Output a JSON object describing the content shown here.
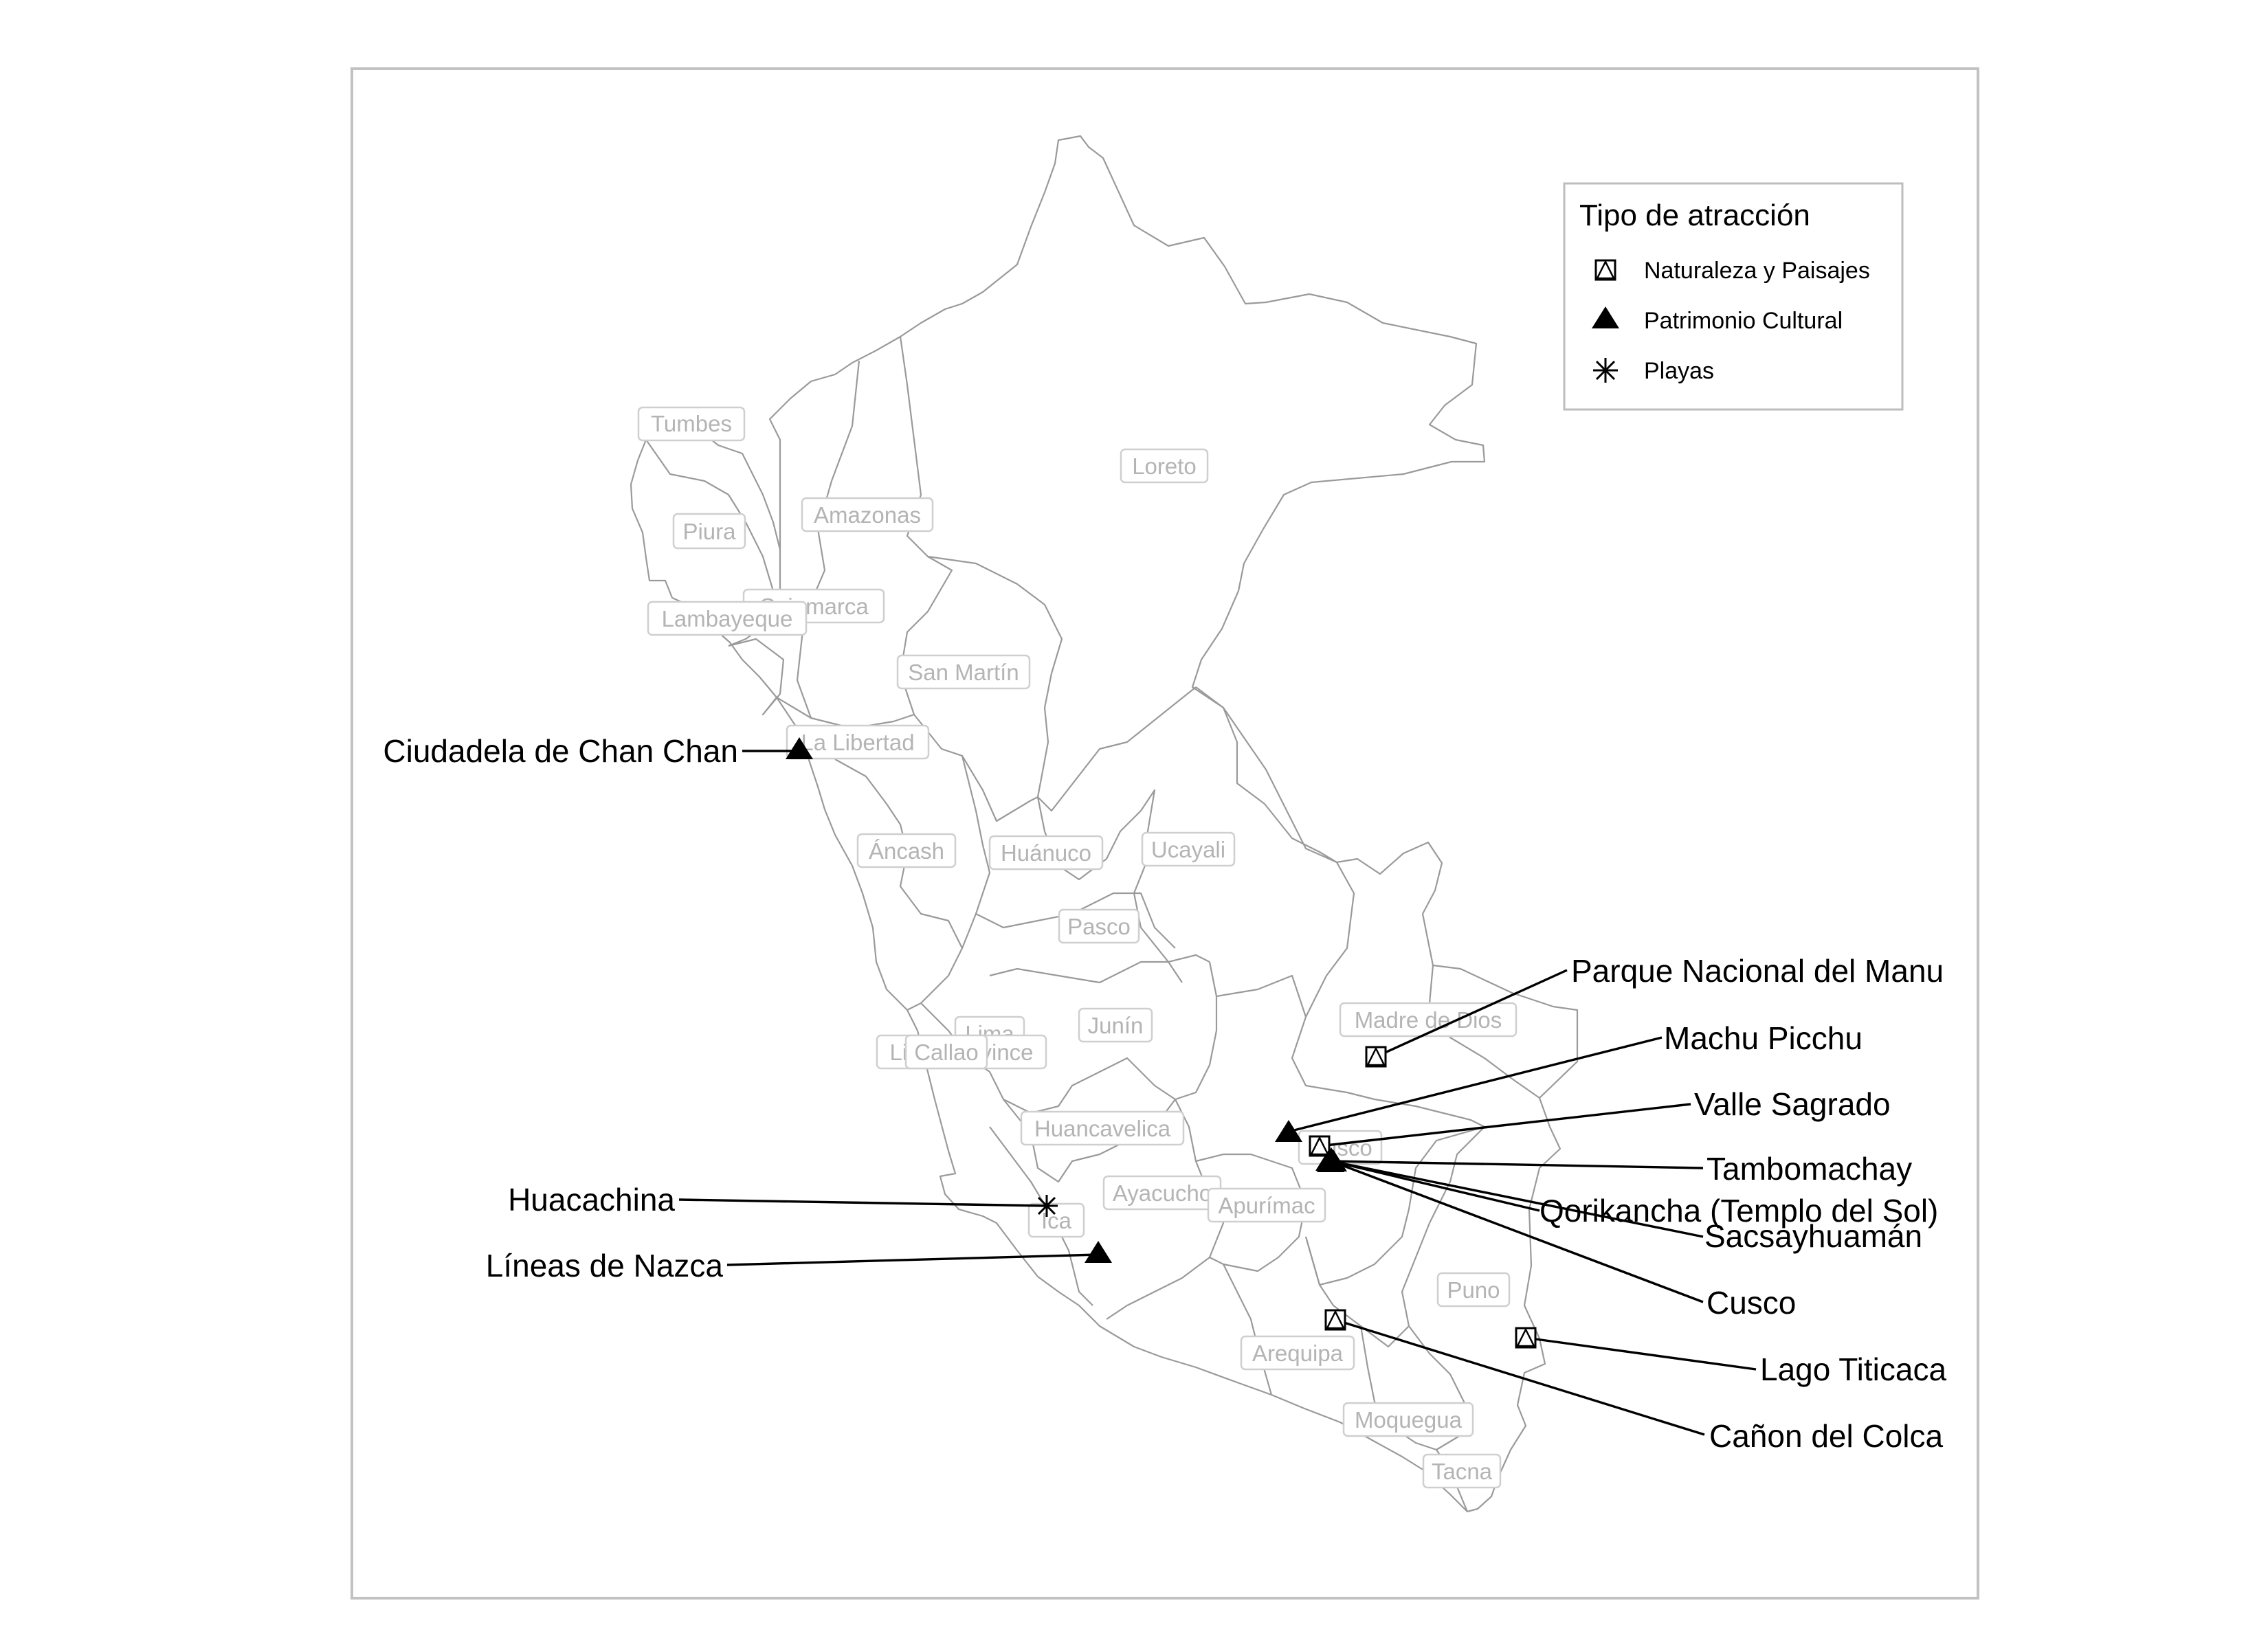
{
  "legend": {
    "title": "Tipo de atracción",
    "items": [
      {
        "label": "Naturaleza y Paisajes",
        "icon": "boxed-triangle-icon"
      },
      {
        "label": "Patrimonio Cultural",
        "icon": "filled-triangle-icon"
      },
      {
        "label": "Playas",
        "icon": "asterisk-icon"
      }
    ]
  },
  "regions": [
    {
      "key": "tumbes",
      "label": "Tumbes"
    },
    {
      "key": "piura",
      "label": "Piura"
    },
    {
      "key": "amazonas",
      "label": "Amazonas"
    },
    {
      "key": "loreto",
      "label": "Loreto"
    },
    {
      "key": "cajamarca",
      "label": "Cajamarca"
    },
    {
      "key": "lambayeque",
      "label": "Lambayeque"
    },
    {
      "key": "san-martin",
      "label": "San Martín"
    },
    {
      "key": "la-libertad",
      "label": "La Libertad"
    },
    {
      "key": "ancash",
      "label": "Áncash"
    },
    {
      "key": "huanuco",
      "label": "Huánuco"
    },
    {
      "key": "ucayali",
      "label": "Ucayali"
    },
    {
      "key": "pasco",
      "label": "Pasco"
    },
    {
      "key": "madre-de-dios",
      "label": "Madre de Dios"
    },
    {
      "key": "junin",
      "label": "Junín"
    },
    {
      "key": "lima",
      "label": "Lima"
    },
    {
      "key": "lima-province",
      "label": "Lima Province"
    },
    {
      "key": "callao",
      "label": "Callao"
    },
    {
      "key": "huancavelica",
      "label": "Huancavelica"
    },
    {
      "key": "cusco",
      "label": "Cusco"
    },
    {
      "key": "ayacucho",
      "label": "Ayacucho"
    },
    {
      "key": "apurimac",
      "label": "Apurímac"
    },
    {
      "key": "ica",
      "label": "Ica"
    },
    {
      "key": "puno",
      "label": "Puno"
    },
    {
      "key": "arequipa",
      "label": "Arequipa"
    },
    {
      "key": "moquegua",
      "label": "Moquegua"
    },
    {
      "key": "tacna",
      "label": "Tacna"
    }
  ],
  "attractions": [
    {
      "key": "chan-chan",
      "name": "Ciudadela de Chan Chan",
      "type": "Patrimonio Cultural"
    },
    {
      "key": "manu",
      "name": "Parque Nacional del Manu",
      "type": "Naturaleza y Paisajes"
    },
    {
      "key": "machu-picchu",
      "name": "Machu Picchu",
      "type": "Patrimonio Cultural"
    },
    {
      "key": "valle-sagrado",
      "name": "Valle Sagrado",
      "type": "Naturaleza y Paisajes"
    },
    {
      "key": "tambomachay",
      "name": "Tambomachay",
      "type": "Patrimonio Cultural"
    },
    {
      "key": "qorikancha",
      "name": "Qorikancha (Templo del Sol)",
      "type": "Patrimonio Cultural"
    },
    {
      "key": "sacsayhuaman",
      "name": "Sacsayhuamán",
      "type": "Patrimonio Cultural"
    },
    {
      "key": "cusco",
      "name": "Cusco",
      "type": "Patrimonio Cultural"
    },
    {
      "key": "huacachina",
      "name": "Huacachina",
      "type": "Playas"
    },
    {
      "key": "nazca",
      "name": "Líneas de Nazca",
      "type": "Patrimonio Cultural"
    },
    {
      "key": "titicaca",
      "name": "Lago Titicaca",
      "type": "Naturaleza y Paisajes"
    },
    {
      "key": "colca",
      "name": "Cañon del Colca",
      "type": "Naturaleza y Paisajes"
    }
  ]
}
